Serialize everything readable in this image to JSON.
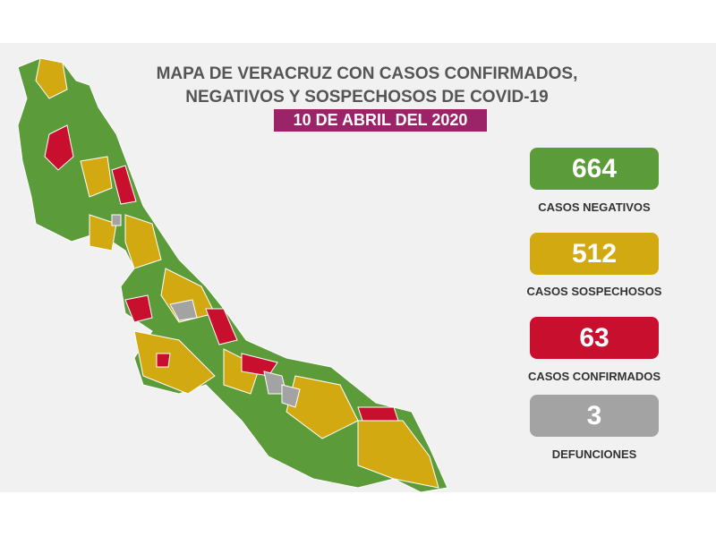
{
  "header": {
    "title_lines": [
      "MAPA DE VERACRUZ CON CASOS CONFIRMADOS,",
      "NEGATIVOS Y SOSPECHOSOS DE COVID-19"
    ],
    "date": "10 DE ABRIL DEL 2020"
  },
  "stats": [
    {
      "value": 664,
      "label": "CASOS NEGATIVOS",
      "color": "#5b9b3a"
    },
    {
      "value": 512,
      "label": "CASOS SOSPECHOSOS",
      "color": "#d2a910"
    },
    {
      "value": 63,
      "label": "CASOS CONFIRMADOS",
      "color": "#c8102e"
    },
    {
      "value": 3,
      "label": "DEFUNCIONES",
      "color": "#a3a3a3"
    }
  ]
}
